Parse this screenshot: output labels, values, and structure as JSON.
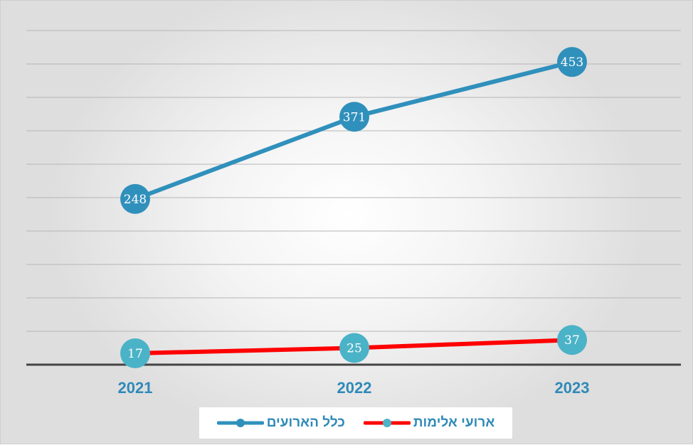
{
  "chart_data": {
    "type": "line",
    "categories": [
      "2021",
      "2022",
      "2023"
    ],
    "ylim": [
      0,
      500
    ],
    "grid": true,
    "legend_position": "bottom",
    "data_labels": true,
    "series": [
      {
        "name": "ארועי אלימות",
        "values": [
          17,
          25,
          37
        ],
        "line_color": "#ff0000",
        "marker_color": "#4bb3c7"
      },
      {
        "name": "כלל הארועים",
        "values": [
          248,
          371,
          453
        ],
        "line_color": "#3090bc",
        "marker_color": "#3090bc"
      }
    ]
  },
  "colors": {
    "axis_label": "#2f8ab8",
    "grid": "#b5b5b5",
    "baseline": "#444444",
    "data_label_text": "#ffffff"
  }
}
